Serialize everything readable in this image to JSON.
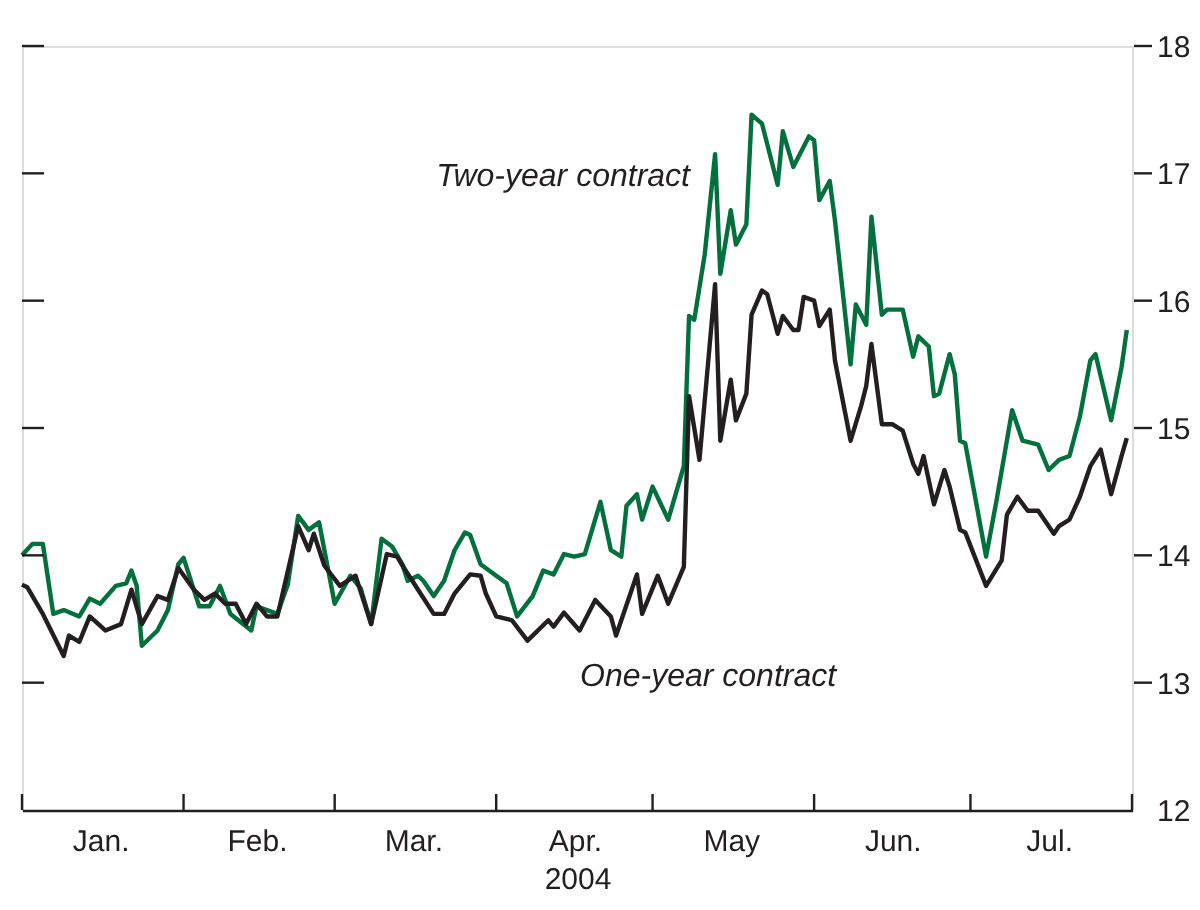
{
  "chart_data": {
    "type": "line",
    "xlabel": "2004",
    "xlim": [
      "2004-01-01",
      "2004-08-01"
    ],
    "xticks": [
      {
        "value": "2004-01-01",
        "label": null
      },
      {
        "value": "2004-01-16",
        "label": "Jan."
      },
      {
        "value": "2004-02-01",
        "label": null
      },
      {
        "value": "2004-02-15",
        "label": "Feb."
      },
      {
        "value": "2004-03-01",
        "label": null
      },
      {
        "value": "2004-03-16",
        "label": "Mar."
      },
      {
        "value": "2004-04-01",
        "label": null
      },
      {
        "value": "2004-04-16",
        "label": "Apr."
      },
      {
        "value": "2004-05-01",
        "label": null
      },
      {
        "value": "2004-05-16",
        "label": "May"
      },
      {
        "value": "2004-06-01",
        "label": null
      },
      {
        "value": "2004-06-16",
        "label": "Jun."
      },
      {
        "value": "2004-07-01",
        "label": null
      },
      {
        "value": "2004-07-16",
        "label": "Jul."
      },
      {
        "value": "2004-08-01",
        "label": null
      }
    ],
    "ylim": [
      12,
      18
    ],
    "yticks": [
      12,
      13,
      14,
      15,
      16,
      17,
      18
    ],
    "grid": false,
    "line_style": "solid",
    "marker": "none",
    "series": [
      {
        "name": "Two-year contract",
        "color": "#00703c",
        "x": [
          "2004-01-01",
          "2004-01-03",
          "2004-01-05",
          "2004-01-07",
          "2004-01-09",
          "2004-01-12",
          "2004-01-14",
          "2004-01-16",
          "2004-01-19",
          "2004-01-21",
          "2004-01-22",
          "2004-01-23",
          "2004-01-24",
          "2004-01-27",
          "2004-01-29",
          "2004-01-31",
          "2004-02-01",
          "2004-02-04",
          "2004-02-06",
          "2004-02-08",
          "2004-02-10",
          "2004-02-14",
          "2004-02-15",
          "2004-02-19",
          "2004-02-21",
          "2004-02-23",
          "2004-02-25",
          "2004-02-27",
          "2004-03-01",
          "2004-03-04",
          "2004-03-06",
          "2004-03-08",
          "2004-03-10",
          "2004-03-12",
          "2004-03-14",
          "2004-03-15",
          "2004-03-17",
          "2004-03-18",
          "2004-03-20",
          "2004-03-22",
          "2004-03-24",
          "2004-03-26",
          "2004-03-27",
          "2004-03-29",
          "2004-04-01",
          "2004-04-03",
          "2004-04-05",
          "2004-04-08",
          "2004-04-10",
          "2004-04-12",
          "2004-04-14",
          "2004-04-16",
          "2004-04-18",
          "2004-04-21",
          "2004-04-23",
          "2004-04-25",
          "2004-04-26",
          "2004-04-28",
          "2004-04-29",
          "2004-05-01",
          "2004-05-04",
          "2004-05-07",
          "2004-05-08",
          "2004-05-09",
          "2004-05-11",
          "2004-05-13",
          "2004-05-14",
          "2004-05-16",
          "2004-05-17",
          "2004-05-19",
          "2004-05-20",
          "2004-05-22",
          "2004-05-25",
          "2004-05-26",
          "2004-05-28",
          "2004-05-31",
          "2004-06-01",
          "2004-06-02",
          "2004-06-04",
          "2004-06-05",
          "2004-06-08",
          "2004-06-09",
          "2004-06-11",
          "2004-06-12",
          "2004-06-14",
          "2004-06-15",
          "2004-06-18",
          "2004-06-20",
          "2004-06-21",
          "2004-06-23",
          "2004-06-24",
          "2004-06-25",
          "2004-06-27",
          "2004-06-28",
          "2004-06-29",
          "2004-06-30",
          "2004-07-04",
          "2004-07-06",
          "2004-07-09",
          "2004-07-11",
          "2004-07-14",
          "2004-07-16",
          "2004-07-18",
          "2004-07-20",
          "2004-07-22",
          "2004-07-24",
          "2004-07-25",
          "2004-07-28",
          "2004-07-30",
          "2004-07-31"
        ],
        "values": [
          14.0,
          14.09,
          14.09,
          13.54,
          13.57,
          13.52,
          13.66,
          13.62,
          13.76,
          13.78,
          13.88,
          13.76,
          13.29,
          13.41,
          13.57,
          13.93,
          13.98,
          13.6,
          13.6,
          13.76,
          13.54,
          13.41,
          13.6,
          13.54,
          13.77,
          14.31,
          14.2,
          14.26,
          13.62,
          13.84,
          13.74,
          13.46,
          14.13,
          14.07,
          13.93,
          13.8,
          13.84,
          13.8,
          13.68,
          13.8,
          14.04,
          14.18,
          14.16,
          13.93,
          13.84,
          13.78,
          13.52,
          13.68,
          13.88,
          13.85,
          14.01,
          13.99,
          14.01,
          14.42,
          14.04,
          13.99,
          14.39,
          14.48,
          14.28,
          14.54,
          14.28,
          14.7,
          15.88,
          15.85,
          16.36,
          17.15,
          16.21,
          16.71,
          16.44,
          16.6,
          17.46,
          17.39,
          16.91,
          17.33,
          17.05,
          17.29,
          17.26,
          16.79,
          16.94,
          16.63,
          15.5,
          15.97,
          15.81,
          16.66,
          15.89,
          15.93,
          15.93,
          15.56,
          15.72,
          15.64,
          15.25,
          15.27,
          15.58,
          15.42,
          14.9,
          14.88,
          13.99,
          14.43,
          15.14,
          14.9,
          14.87,
          14.67,
          14.75,
          14.78,
          15.09,
          15.53,
          15.58,
          15.06,
          15.48,
          15.77
        ]
      },
      {
        "name": "One-year contract",
        "color": "#231f20",
        "x": [
          "2004-01-01",
          "2004-01-02",
          "2004-01-05",
          "2004-01-09",
          "2004-01-10",
          "2004-01-12",
          "2004-01-14",
          "2004-01-17",
          "2004-01-20",
          "2004-01-22",
          "2004-01-24",
          "2004-01-27",
          "2004-01-29",
          "2004-01-31",
          "2004-02-03",
          "2004-02-05",
          "2004-02-07",
          "2004-02-09",
          "2004-02-11",
          "2004-02-13",
          "2004-02-15",
          "2004-02-17",
          "2004-02-19",
          "2004-02-23",
          "2004-02-25",
          "2004-02-26",
          "2004-02-28",
          "2004-03-02",
          "2004-03-05",
          "2004-03-08",
          "2004-03-11",
          "2004-03-13",
          "2004-03-14",
          "2004-03-17",
          "2004-03-20",
          "2004-03-22",
          "2004-03-24",
          "2004-03-27",
          "2004-03-29",
          "2004-03-30",
          "2004-04-01",
          "2004-04-04",
          "2004-04-07",
          "2004-04-11",
          "2004-04-12",
          "2004-04-14",
          "2004-04-17",
          "2004-04-20",
          "2004-04-23",
          "2004-04-24",
          "2004-04-28",
          "2004-04-29",
          "2004-05-02",
          "2004-05-04",
          "2004-05-07",
          "2004-05-08",
          "2004-05-10",
          "2004-05-13",
          "2004-05-14",
          "2004-05-16",
          "2004-05-17",
          "2004-05-19",
          "2004-05-20",
          "2004-05-22",
          "2004-05-23",
          "2004-05-25",
          "2004-05-26",
          "2004-05-28",
          "2004-05-29",
          "2004-05-30",
          "2004-06-01",
          "2004-06-02",
          "2004-06-04",
          "2004-06-05",
          "2004-06-08",
          "2004-06-10",
          "2004-06-11",
          "2004-06-12",
          "2004-06-14",
          "2004-06-16",
          "2004-06-18",
          "2004-06-20",
          "2004-06-21",
          "2004-06-22",
          "2004-06-24",
          "2004-06-26",
          "2004-06-27",
          "2004-06-29",
          "2004-06-30",
          "2004-07-04",
          "2004-07-07",
          "2004-07-08",
          "2004-07-10",
          "2004-07-12",
          "2004-07-14",
          "2004-07-17",
          "2004-07-18",
          "2004-07-20",
          "2004-07-22",
          "2004-07-24",
          "2004-07-26",
          "2004-07-28",
          "2004-07-30",
          "2004-07-31"
        ],
        "values": [
          13.77,
          13.75,
          13.54,
          13.21,
          13.37,
          13.32,
          13.52,
          13.41,
          13.46,
          13.73,
          13.46,
          13.68,
          13.65,
          13.9,
          13.73,
          13.65,
          13.7,
          13.62,
          13.62,
          13.46,
          13.62,
          13.52,
          13.52,
          14.23,
          14.04,
          14.17,
          13.92,
          13.76,
          13.84,
          13.46,
          14.01,
          13.99,
          13.92,
          13.73,
          13.54,
          13.54,
          13.7,
          13.85,
          13.84,
          13.7,
          13.52,
          13.49,
          13.33,
          13.49,
          13.44,
          13.55,
          13.41,
          13.65,
          13.52,
          13.37,
          13.85,
          13.54,
          13.84,
          13.62,
          13.91,
          15.25,
          14.75,
          16.13,
          14.9,
          15.38,
          15.06,
          15.27,
          15.89,
          16.08,
          16.05,
          15.74,
          15.88,
          15.77,
          15.77,
          16.03,
          16.0,
          15.8,
          15.93,
          15.53,
          14.9,
          15.17,
          15.33,
          15.66,
          15.03,
          15.03,
          14.98,
          14.72,
          14.64,
          14.78,
          14.4,
          14.67,
          14.54,
          14.2,
          14.18,
          13.76,
          13.96,
          14.32,
          14.46,
          14.35,
          14.35,
          14.17,
          14.23,
          14.28,
          14.46,
          14.7,
          14.83,
          14.48,
          14.78,
          14.92
        ]
      }
    ]
  }
}
